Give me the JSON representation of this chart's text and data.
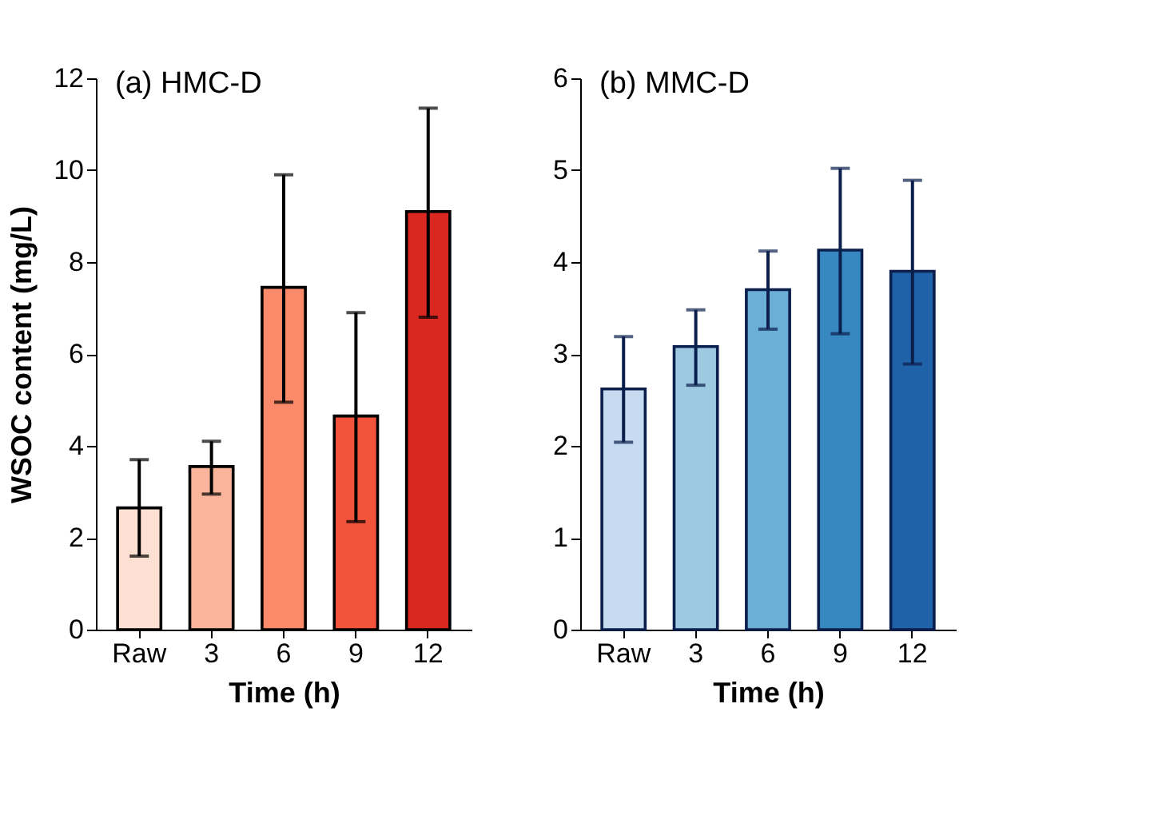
{
  "chart_data": [
    {
      "type": "bar",
      "title": "(a) HMC-D",
      "xlabel": "Time (h)",
      "ylabel": "WSOC content (mg/L)",
      "categories": [
        "Raw",
        "3",
        "6",
        "9",
        "12"
      ],
      "values": [
        2.65,
        3.55,
        7.45,
        4.65,
        9.1
      ],
      "errors": [
        [
          1.6,
          3.7
        ],
        [
          2.95,
          4.1
        ],
        [
          4.95,
          9.9
        ],
        [
          2.35,
          6.9
        ],
        [
          6.8,
          11.35
        ]
      ],
      "colors": [
        "#fde0d2",
        "#fbb49c",
        "#fb8a6a",
        "#f4533b",
        "#d9281f"
      ],
      "ylim": [
        0,
        12
      ],
      "yticks": [
        0,
        2,
        4,
        6,
        8,
        10,
        12
      ],
      "grid": false,
      "legend": false
    },
    {
      "type": "bar",
      "title": "(b) MMC-D",
      "xlabel": "Time (h)",
      "categories": [
        "Raw",
        "3",
        "6",
        "9",
        "12"
      ],
      "values": [
        2.62,
        3.08,
        3.7,
        4.13,
        3.9
      ],
      "errors": [
        [
          2.04,
          3.19
        ],
        [
          2.66,
          3.48
        ],
        [
          3.27,
          4.12
        ],
        [
          3.22,
          5.02
        ],
        [
          2.89,
          4.89
        ]
      ],
      "colors": [
        "#c6dbef",
        "#9ecae1",
        "#6baed6",
        "#3787c0",
        "#1f62a8"
      ],
      "ylim": [
        0,
        6
      ],
      "yticks": [
        0,
        1,
        2,
        3,
        4,
        5,
        6
      ],
      "grid": false,
      "legend": false
    }
  ]
}
